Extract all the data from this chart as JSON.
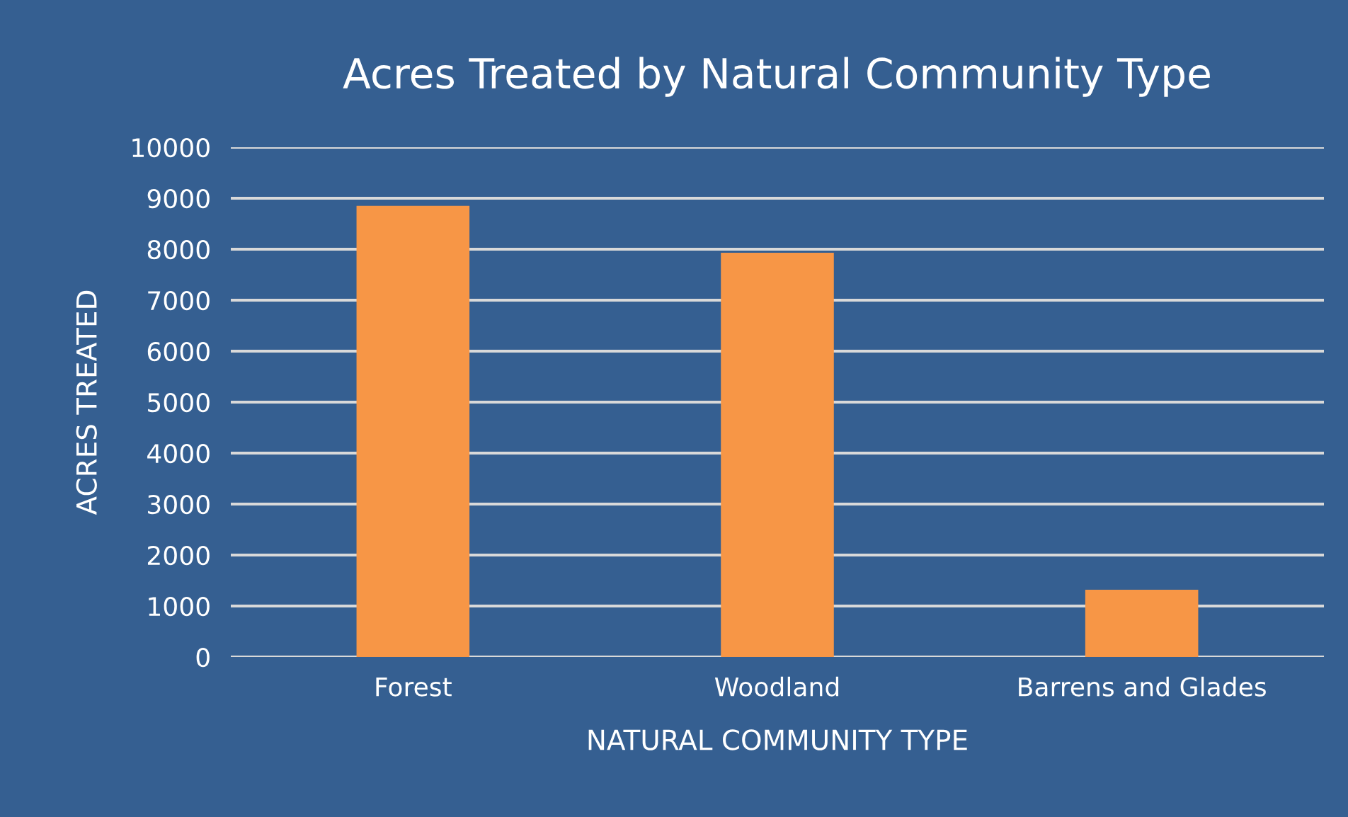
{
  "chart_data": {
    "type": "bar",
    "title": "Acres Treated by Natural Community Type",
    "xlabel": "NATURAL COMMUNITY TYPE",
    "ylabel": "ACRES TREATED",
    "categories": [
      "Forest",
      "Woodland",
      "Barrens and Glades"
    ],
    "values": [
      8850,
      7930,
      1320
    ],
    "color": "#f79646",
    "ylim": [
      0,
      10000
    ],
    "yticks": [
      0,
      1000,
      2000,
      3000,
      4000,
      5000,
      6000,
      7000,
      8000,
      9000,
      10000
    ],
    "grid": "y",
    "legend": false
  }
}
